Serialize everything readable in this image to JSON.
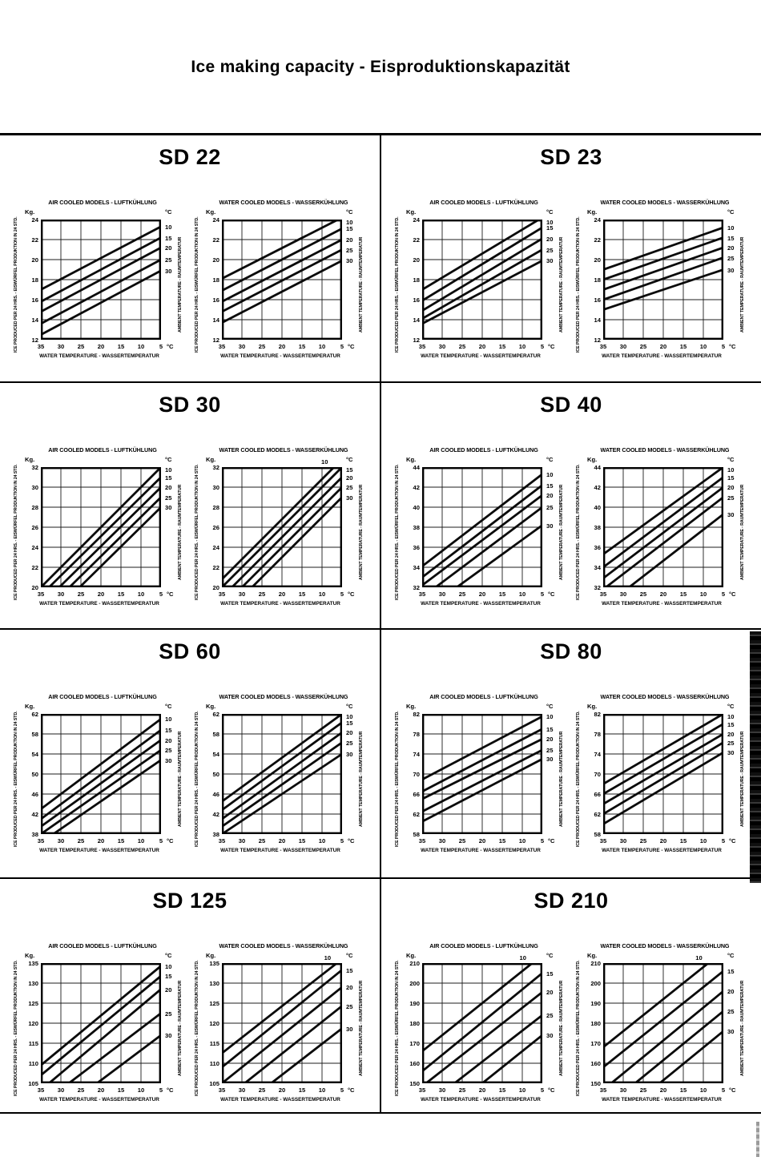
{
  "page": {
    "title": "Ice making capacity -  Eisproduktionskapazität"
  },
  "labels": {
    "kg": "Kg.",
    "degc": "°C",
    "y_axis_title": "ICE PRODUCED PER 24 HRS. - EISWÜRFEL PRODUKTION IN 24 STD.",
    "ambient_axis_title": "AMBIENT TEMPERATURE - RAUMTEMPERATUR",
    "x_axis_title": "WATER TEMPERATURE - WASSERTEMPERATUR"
  },
  "chart_data": {
    "common": {
      "type": "line",
      "x": [
        35,
        30,
        25,
        20,
        15,
        10,
        5
      ],
      "x_unit": "°C",
      "y_unit": "Kg.",
      "x_label": "WATER TEMPERATURE - WASSERTEMPERATUR",
      "y_label": "ICE PRODUCED PER 24 HRS. - EISWÜRFEL PRODUKTION IN 24 STD.",
      "legend_label": "AMBIENT TEMPERATURE - RAUMTEMPERATUR",
      "legend_position": "right",
      "grid": true,
      "note": "Each series is a straight line of ice production (kg/24h) vs water temperature; endpoints given at 35 °C and 5 °C water temperature."
    },
    "charts": [
      {
        "model": "SD 22",
        "cooling": "air",
        "title": "AIR COOLED MODELS - LUFTKÜHLUNG",
        "ylim": [
          12,
          24
        ],
        "y_ticks": [
          24,
          22,
          20,
          18,
          16,
          14,
          12
        ],
        "series": [
          {
            "ambient_c": 10,
            "kg_at_35c": 17.0,
            "kg_at_5c": 23.3
          },
          {
            "ambient_c": 15,
            "kg_at_35c": 15.8,
            "kg_at_5c": 22.2
          },
          {
            "ambient_c": 20,
            "kg_at_35c": 14.8,
            "kg_at_5c": 21.2
          },
          {
            "ambient_c": 25,
            "kg_at_35c": 13.6,
            "kg_at_5c": 20.0
          },
          {
            "ambient_c": 30,
            "kg_at_35c": 12.5,
            "kg_at_5c": 18.9
          }
        ]
      },
      {
        "model": "SD 22",
        "cooling": "water",
        "title": "WATER COOLED MODELS - WASSERKÜHLUNG",
        "ylim": [
          12,
          24
        ],
        "y_ticks": [
          24,
          22,
          20,
          18,
          16,
          14,
          12
        ],
        "series": [
          {
            "ambient_c": 10,
            "kg_at_35c": 18.1,
            "kg_at_5c": 24.2
          },
          {
            "ambient_c": 15,
            "kg_at_35c": 16.9,
            "kg_at_5c": 23.1
          },
          {
            "ambient_c": 20,
            "kg_at_35c": 15.8,
            "kg_at_5c": 22.0
          },
          {
            "ambient_c": 25,
            "kg_at_35c": 14.8,
            "kg_at_5c": 21.0
          },
          {
            "ambient_c": 30,
            "kg_at_35c": 13.7,
            "kg_at_5c": 19.9
          }
        ]
      },
      {
        "model": "SD 23",
        "cooling": "air",
        "title": "AIR COOLED MODELS - LUFTKÜHLUNG",
        "ylim": [
          12,
          24
        ],
        "y_ticks": [
          24,
          22,
          20,
          18,
          16,
          14,
          12
        ],
        "series": [
          {
            "ambient_c": 10,
            "kg_at_35c": 17.0,
            "kg_at_5c": 24.2
          },
          {
            "ambient_c": 15,
            "kg_at_35c": 15.9,
            "kg_at_5c": 23.2
          },
          {
            "ambient_c": 20,
            "kg_at_35c": 14.9,
            "kg_at_5c": 22.1
          },
          {
            "ambient_c": 25,
            "kg_at_35c": 14.1,
            "kg_at_5c": 21.0
          },
          {
            "ambient_c": 30,
            "kg_at_35c": 13.6,
            "kg_at_5c": 19.9
          }
        ]
      },
      {
        "model": "SD 23",
        "cooling": "water",
        "title": "WATER COOLED MODELS - WASSERKÜHLUNG",
        "ylim": [
          12,
          24
        ],
        "y_ticks": [
          24,
          22,
          20,
          18,
          16,
          14,
          12
        ],
        "series": [
          {
            "ambient_c": 10,
            "kg_at_35c": 19.0,
            "kg_at_5c": 23.2
          },
          {
            "ambient_c": 15,
            "kg_at_35c": 18.0,
            "kg_at_5c": 22.2
          },
          {
            "ambient_c": 20,
            "kg_at_35c": 17.0,
            "kg_at_5c": 21.2
          },
          {
            "ambient_c": 25,
            "kg_at_35c": 16.0,
            "kg_at_5c": 20.2
          },
          {
            "ambient_c": 30,
            "kg_at_35c": 15.0,
            "kg_at_5c": 19.0
          }
        ]
      },
      {
        "model": "SD 30",
        "cooling": "air",
        "title": "AIR COOLED MODELS - LUFTKÜHLUNG",
        "ylim": [
          20,
          32
        ],
        "y_ticks": [
          32,
          30,
          28,
          26,
          24,
          22,
          20
        ],
        "series": [
          {
            "ambient_c": 10,
            "kg_at_35c": 20.0,
            "kg_at_5c": 32.0
          },
          {
            "ambient_c": 15,
            "kg_at_35c": 19.2,
            "kg_at_5c": 31.0
          },
          {
            "ambient_c": 20,
            "kg_at_35c": 18.2,
            "kg_at_5c": 30.0
          },
          {
            "ambient_c": 25,
            "kg_at_35c": 17.2,
            "kg_at_5c": 29.0
          },
          {
            "ambient_c": 30,
            "kg_at_35c": 16.2,
            "kg_at_5c": 28.0
          }
        ]
      },
      {
        "model": "SD 30",
        "cooling": "water",
        "title": "WATER COOLED MODELS - WASSERKÜHLUNG",
        "ylim": [
          20,
          32
        ],
        "y_ticks": [
          32,
          30,
          28,
          26,
          24,
          22,
          20
        ],
        "series": [
          {
            "ambient_c": 10,
            "kg_at_35c": 20.8,
            "kg_at_5c": 32.8
          },
          {
            "ambient_c": 15,
            "kg_at_35c": 20.0,
            "kg_at_5c": 32.0
          },
          {
            "ambient_c": 20,
            "kg_at_35c": 19.0,
            "kg_at_5c": 31.0
          },
          {
            "ambient_c": 25,
            "kg_at_35c": 18.0,
            "kg_at_5c": 30.0
          },
          {
            "ambient_c": 30,
            "kg_at_35c": 17.0,
            "kg_at_5c": 29.0
          }
        ]
      },
      {
        "model": "SD 40",
        "cooling": "air",
        "title": "AIR COOLED MODELS - LUFTKÜHLUNG",
        "ylim": [
          32,
          44
        ],
        "y_ticks": [
          44,
          42,
          40,
          38,
          36,
          34,
          32
        ],
        "series": [
          {
            "ambient_c": 10,
            "kg_at_35c": 34.1,
            "kg_at_5c": 43.3
          },
          {
            "ambient_c": 15,
            "kg_at_35c": 33.0,
            "kg_at_5c": 42.2
          },
          {
            "ambient_c": 20,
            "kg_at_35c": 32.2,
            "kg_at_5c": 41.2
          },
          {
            "ambient_c": 25,
            "kg_at_35c": 31.0,
            "kg_at_5c": 40.0
          },
          {
            "ambient_c": 30,
            "kg_at_35c": 29.5,
            "kg_at_5c": 38.2
          }
        ]
      },
      {
        "model": "SD 40",
        "cooling": "water",
        "title": "WATER COOLED MODELS - WASSERKÜHLUNG",
        "ylim": [
          32,
          44
        ],
        "y_ticks": [
          44,
          42,
          40,
          38,
          36,
          34,
          32
        ],
        "series": [
          {
            "ambient_c": 10,
            "kg_at_35c": 35.3,
            "kg_at_5c": 44.0
          },
          {
            "ambient_c": 15,
            "kg_at_35c": 34.0,
            "kg_at_5c": 43.0
          },
          {
            "ambient_c": 20,
            "kg_at_35c": 32.9,
            "kg_at_5c": 42.0
          },
          {
            "ambient_c": 25,
            "kg_at_35c": 31.8,
            "kg_at_5c": 41.0
          },
          {
            "ambient_c": 30,
            "kg_at_35c": 30.0,
            "kg_at_5c": 39.3
          }
        ]
      },
      {
        "model": "SD 60",
        "cooling": "air",
        "title": "AIR COOLED MODELS - LUFTKÜHLUNG",
        "ylim": [
          38,
          62
        ],
        "y_ticks": [
          62,
          58,
          54,
          50,
          46,
          42,
          38
        ],
        "series": [
          {
            "ambient_c": 10,
            "kg_at_35c": 43.0,
            "kg_at_5c": 61.0
          },
          {
            "ambient_c": 15,
            "kg_at_35c": 41.0,
            "kg_at_5c": 58.8
          },
          {
            "ambient_c": 20,
            "kg_at_35c": 39.5,
            "kg_at_5c": 56.8
          },
          {
            "ambient_c": 25,
            "kg_at_35c": 38.0,
            "kg_at_5c": 54.8
          },
          {
            "ambient_c": 30,
            "kg_at_35c": 36.3,
            "kg_at_5c": 52.8
          }
        ]
      },
      {
        "model": "SD 60",
        "cooling": "water",
        "title": "WATER COOLED MODELS - WASSERKÜHLUNG",
        "ylim": [
          38,
          62
        ],
        "y_ticks": [
          62,
          58,
          54,
          50,
          46,
          42,
          38
        ],
        "series": [
          {
            "ambient_c": 10,
            "kg_at_35c": 44.5,
            "kg_at_5c": 62.0
          },
          {
            "ambient_c": 15,
            "kg_at_35c": 42.8,
            "kg_at_5c": 60.3
          },
          {
            "ambient_c": 20,
            "kg_at_35c": 41.0,
            "kg_at_5c": 58.3
          },
          {
            "ambient_c": 25,
            "kg_at_35c": 39.5,
            "kg_at_5c": 56.3
          },
          {
            "ambient_c": 30,
            "kg_at_35c": 38.0,
            "kg_at_5c": 54.0
          }
        ]
      },
      {
        "model": "SD 80",
        "cooling": "air",
        "title": "AIR COOLED MODELS - LUFTKÜHLUNG",
        "ylim": [
          58,
          82
        ],
        "y_ticks": [
          82,
          78,
          74,
          70,
          66,
          62,
          58
        ],
        "series": [
          {
            "ambient_c": 10,
            "kg_at_35c": 68.9,
            "kg_at_5c": 81.5
          },
          {
            "ambient_c": 15,
            "kg_at_35c": 66.5,
            "kg_at_5c": 79.0
          },
          {
            "ambient_c": 20,
            "kg_at_35c": 65.0,
            "kg_at_5c": 77.0
          },
          {
            "ambient_c": 25,
            "kg_at_35c": 62.5,
            "kg_at_5c": 74.8
          },
          {
            "ambient_c": 30,
            "kg_at_35c": 60.5,
            "kg_at_5c": 73.0
          }
        ]
      },
      {
        "model": "SD 80",
        "cooling": "water",
        "title": "WATER COOLED MODELS - WASSERKÜHLUNG",
        "ylim": [
          58,
          82
        ],
        "y_ticks": [
          82,
          78,
          74,
          70,
          66,
          62,
          58
        ],
        "series": [
          {
            "ambient_c": 10,
            "kg_at_35c": 68.0,
            "kg_at_5c": 82.0
          },
          {
            "ambient_c": 15,
            "kg_at_35c": 66.0,
            "kg_at_5c": 80.0
          },
          {
            "ambient_c": 20,
            "kg_at_35c": 64.0,
            "kg_at_5c": 78.0
          },
          {
            "ambient_c": 25,
            "kg_at_35c": 62.0,
            "kg_at_5c": 76.3
          },
          {
            "ambient_c": 30,
            "kg_at_35c": 60.0,
            "kg_at_5c": 74.3
          }
        ]
      },
      {
        "model": "SD 125",
        "cooling": "air",
        "title": "AIR COOLED MODELS - LUFTKÜHLUNG",
        "ylim": [
          105,
          135
        ],
        "y_ticks": [
          135,
          130,
          125,
          120,
          115,
          110,
          105
        ],
        "series": [
          {
            "ambient_c": 10,
            "kg_at_35c": 109.5,
            "kg_at_5c": 134.3
          },
          {
            "ambient_c": 15,
            "kg_at_35c": 107.0,
            "kg_at_5c": 131.8
          },
          {
            "ambient_c": 20,
            "kg_at_35c": 103.3,
            "kg_at_5c": 128.5
          },
          {
            "ambient_c": 25,
            "kg_at_35c": 99.7,
            "kg_at_5c": 122.5
          },
          {
            "ambient_c": 30,
            "kg_at_35c": 94.5,
            "kg_at_5c": 117.0
          }
        ]
      },
      {
        "model": "SD 125",
        "cooling": "water",
        "title": "WATER COOLED MODELS - WASSERKÜHLUNG",
        "ylim": [
          105,
          135
        ],
        "y_ticks": [
          135,
          130,
          125,
          120,
          115,
          110,
          105
        ],
        "series": [
          {
            "ambient_c": 10,
            "kg_at_35c": 112.5,
            "kg_at_5c": 136.0
          },
          {
            "ambient_c": 15,
            "kg_at_35c": 109.0,
            "kg_at_5c": 133.3
          },
          {
            "ambient_c": 20,
            "kg_at_35c": 105.0,
            "kg_at_5c": 129.0
          },
          {
            "ambient_c": 25,
            "kg_at_35c": 100.5,
            "kg_at_5c": 124.3
          },
          {
            "ambient_c": 30,
            "kg_at_35c": 95.5,
            "kg_at_5c": 118.7
          }
        ]
      },
      {
        "model": "SD 210",
        "cooling": "air",
        "title": "AIR COOLED MODELS - LUFTKÜHLUNG",
        "ylim": [
          150,
          210
        ],
        "y_ticks": [
          210,
          200,
          190,
          180,
          170,
          160,
          150
        ],
        "series": [
          {
            "ambient_c": 10,
            "kg_at_35c": 166.0,
            "kg_at_5c": 214.0
          },
          {
            "ambient_c": 15,
            "kg_at_35c": 156.0,
            "kg_at_5c": 205.0
          },
          {
            "ambient_c": 20,
            "kg_at_35c": 148.5,
            "kg_at_5c": 195.5
          },
          {
            "ambient_c": 25,
            "kg_at_35c": 137.5,
            "kg_at_5c": 184.0
          },
          {
            "ambient_c": 30,
            "kg_at_35c": 126.0,
            "kg_at_5c": 174.0
          }
        ]
      },
      {
        "model": "SD 210",
        "cooling": "water",
        "title": "WATER COOLED MODELS - WASSERKÜHLUNG",
        "ylim": [
          150,
          210
        ],
        "y_ticks": [
          210,
          200,
          190,
          180,
          170,
          160,
          150
        ],
        "series": [
          {
            "ambient_c": 10,
            "kg_at_35c": 168.0,
            "kg_at_5c": 216.0
          },
          {
            "ambient_c": 15,
            "kg_at_35c": 158.0,
            "kg_at_5c": 206.0
          },
          {
            "ambient_c": 20,
            "kg_at_35c": 146.7,
            "kg_at_5c": 196.0
          },
          {
            "ambient_c": 25,
            "kg_at_35c": 137.0,
            "kg_at_5c": 186.0
          },
          {
            "ambient_c": 30,
            "kg_at_35c": 127.0,
            "kg_at_5c": 176.0
          }
        ]
      }
    ]
  }
}
